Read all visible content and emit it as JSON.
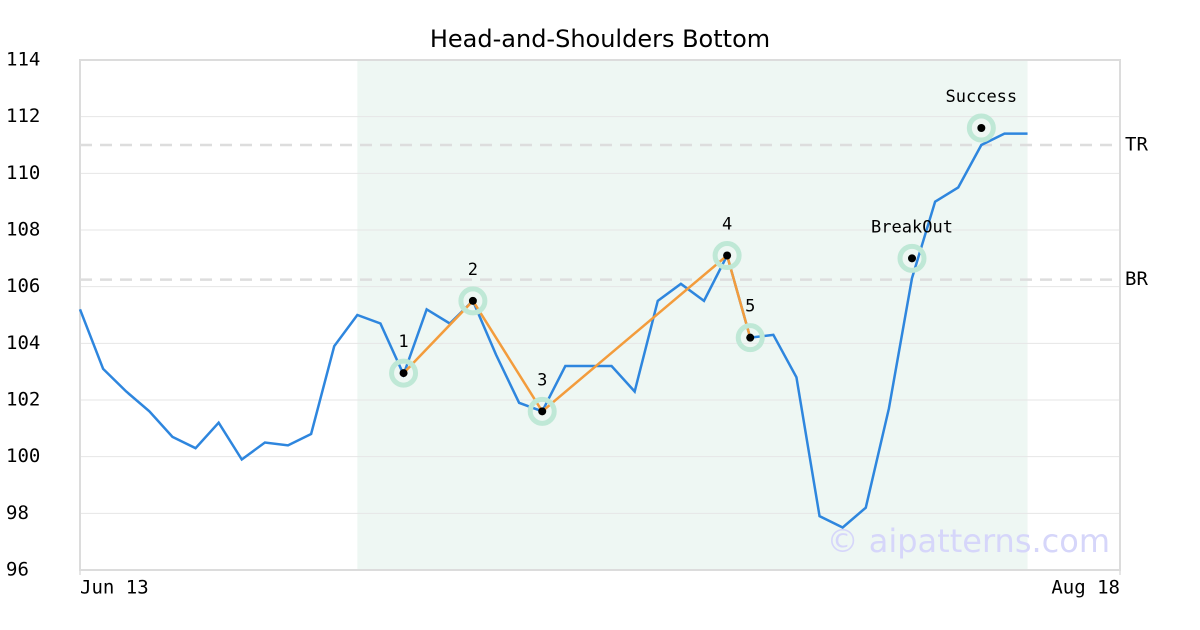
{
  "chart_data": {
    "type": "line",
    "title": "Head-and-Shoulders Bottom",
    "x": [
      0,
      1,
      2,
      3,
      4,
      5,
      6,
      7,
      8,
      9,
      10,
      11,
      12,
      13,
      14,
      15,
      16,
      17,
      18,
      19,
      20,
      21,
      22,
      23,
      24,
      25,
      26,
      27,
      28,
      29,
      30,
      31,
      32,
      33,
      34,
      35,
      36,
      37,
      38,
      39,
      40,
      41
    ],
    "xlim": [
      0,
      45
    ],
    "xticks": [
      {
        "value": 0,
        "label": "Jun 13"
      },
      {
        "value": 45,
        "label": "Aug 18"
      }
    ],
    "ylim": [
      96,
      114
    ],
    "yticks": [
      96,
      98,
      100,
      102,
      104,
      106,
      108,
      110,
      112,
      114
    ],
    "grid": true,
    "series": [
      {
        "color": "#2e86de",
        "values": [
          105.2,
          103.1,
          102.3,
          101.6,
          100.7,
          100.3,
          101.2,
          99.9,
          100.5,
          100.4,
          100.8,
          103.9,
          105.0,
          104.7,
          102.9,
          105.2,
          104.7,
          105.5,
          103.6,
          101.9,
          101.6,
          103.2,
          103.2,
          103.2,
          102.3,
          105.5,
          106.1,
          105.5,
          107.1,
          104.2,
          104.3,
          102.8,
          97.9,
          97.5,
          98.2,
          101.7,
          106.3,
          109.0,
          109.5,
          111.0,
          111.4,
          111.4
        ]
      }
    ],
    "highlight_xlim": [
      12,
      41
    ],
    "highlight_color": "#eef7f3",
    "levels": [
      {
        "label": "TR",
        "value": 111.0
      },
      {
        "label": "BR",
        "value": 106.25
      }
    ],
    "pattern": {
      "color": "#f39c3c",
      "x": [
        14,
        17,
        20,
        28,
        29
      ],
      "values": [
        102.95,
        105.5,
        101.6,
        107.1,
        104.2
      ],
      "labels": [
        "1",
        "2",
        "3",
        "4",
        "5"
      ]
    },
    "events": [
      {
        "label": "BreakOut",
        "x": 36,
        "value": 107.0
      },
      {
        "label": "Success",
        "x": 39,
        "value": 111.6
      }
    ],
    "watermark": "© aipatterns.com"
  }
}
